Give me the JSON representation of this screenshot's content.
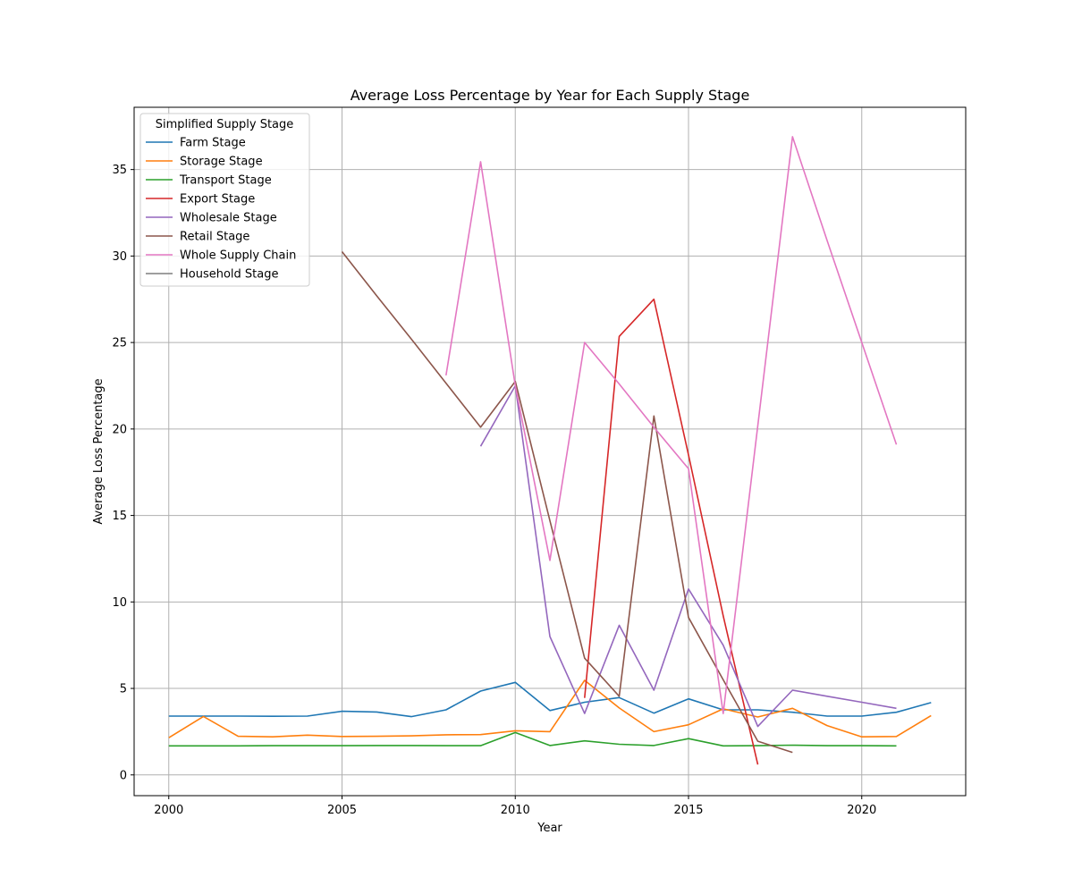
{
  "chart_data": {
    "type": "line",
    "title": "Average Loss Percentage by Year for Each Supply Stage",
    "xlabel": "Year",
    "ylabel": "Average Loss Percentage",
    "xlim": [
      1999,
      2023
    ],
    "ylim": [
      -1.2,
      38.6
    ],
    "xticks": [
      2000,
      2005,
      2010,
      2015,
      2020
    ],
    "yticks": [
      0,
      5,
      10,
      15,
      20,
      25,
      30,
      35
    ],
    "grid": true,
    "legend": {
      "title": "Simplified Supply Stage",
      "position": "top-left"
    },
    "series": [
      {
        "name": "Farm Stage",
        "color": "#1f77b4",
        "x": [
          2000,
          2001,
          2002,
          2003,
          2004,
          2005,
          2006,
          2007,
          2008,
          2009,
          2010,
          2011,
          2012,
          2013,
          2014,
          2015,
          2016,
          2017,
          2018,
          2019,
          2020,
          2021,
          2022
        ],
        "y": [
          3.4,
          3.4,
          3.4,
          3.39,
          3.4,
          3.68,
          3.64,
          3.37,
          3.76,
          4.85,
          5.35,
          3.72,
          4.2,
          4.47,
          3.57,
          4.4,
          3.76,
          3.76,
          3.62,
          3.4,
          3.4,
          3.62,
          4.18
        ]
      },
      {
        "name": "Storage Stage",
        "color": "#ff7f0e",
        "x": [
          2000,
          2001,
          2002,
          2003,
          2004,
          2005,
          2006,
          2007,
          2008,
          2009,
          2010,
          2011,
          2012,
          2013,
          2014,
          2015,
          2016,
          2017,
          2018,
          2019,
          2020,
          2021,
          2022
        ],
        "y": [
          2.15,
          3.38,
          2.23,
          2.2,
          2.3,
          2.22,
          2.23,
          2.26,
          2.32,
          2.33,
          2.55,
          2.5,
          5.47,
          3.87,
          2.5,
          2.9,
          3.82,
          3.35,
          3.85,
          2.85,
          2.2,
          2.22,
          3.43
        ]
      },
      {
        "name": "Transport Stage",
        "color": "#2ca02c",
        "x": [
          2000,
          2001,
          2002,
          2003,
          2004,
          2005,
          2006,
          2007,
          2008,
          2009,
          2010,
          2011,
          2012,
          2013,
          2014,
          2015,
          2016,
          2017,
          2018,
          2019,
          2020,
          2021
        ],
        "y": [
          1.68,
          1.68,
          1.68,
          1.69,
          1.69,
          1.69,
          1.7,
          1.7,
          1.69,
          1.69,
          2.45,
          1.7,
          1.97,
          1.77,
          1.7,
          2.1,
          1.68,
          1.69,
          1.72,
          1.69,
          1.69,
          1.68
        ]
      },
      {
        "name": "Export Stage",
        "color": "#d62728",
        "x": [
          2012,
          2013,
          2014,
          2015,
          2016,
          2017
        ],
        "y": [
          4.45,
          25.35,
          27.5,
          18.5,
          9.2,
          0.6
        ]
      },
      {
        "name": "Wholesale Stage",
        "color": "#9467bd",
        "x": [
          2009,
          2010,
          2011,
          2012,
          2013,
          2014,
          2015,
          2016,
          2017,
          2018,
          2019,
          2020,
          2021
        ],
        "y": [
          19.0,
          22.5,
          8.0,
          3.55,
          8.65,
          4.9,
          10.75,
          7.5,
          2.8,
          4.9,
          4.55,
          4.2,
          3.85
        ]
      },
      {
        "name": "Retail Stage",
        "color": "#8c564b",
        "x": [
          2005,
          2006,
          2007,
          2008,
          2009,
          2010,
          2011,
          2012,
          2013,
          2014,
          2015,
          2016,
          2017,
          2018
        ],
        "y": [
          30.25,
          27.7,
          25.2,
          22.65,
          20.1,
          22.75,
          14.7,
          6.75,
          4.55,
          20.75,
          9.1,
          5.5,
          1.95,
          1.3
        ]
      },
      {
        "name": "Whole Supply Chain",
        "color": "#e377c2",
        "x": [
          2008,
          2009,
          2010,
          2011,
          2012,
          2013,
          2014,
          2015,
          2016,
          2017,
          2018,
          2019,
          2020,
          2021
        ],
        "y": [
          23.1,
          35.45,
          22.5,
          12.4,
          25.0,
          22.6,
          20.1,
          17.7,
          3.55,
          20.2,
          36.9,
          30.9,
          25.0,
          19.1
        ]
      },
      {
        "name": "Household Stage",
        "color": "#7f7f7f",
        "x": [],
        "y": []
      }
    ]
  }
}
